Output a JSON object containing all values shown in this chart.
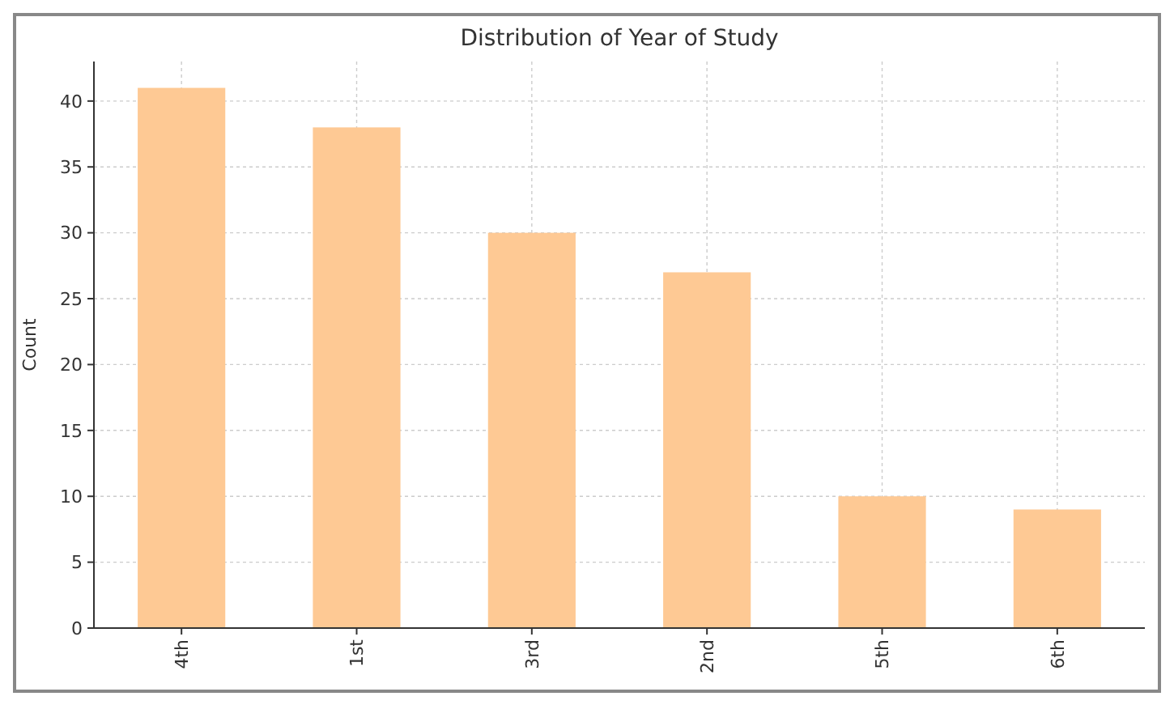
{
  "chart_data": {
    "type": "bar",
    "title": "Distribution of Year of Study",
    "ylabel": "Count",
    "categories": [
      "4th",
      "1st",
      "3rd",
      "2nd",
      "5th",
      "6th"
    ],
    "values": [
      41,
      38,
      30,
      27,
      10,
      9
    ],
    "color": "#fec994",
    "ylim": [
      0,
      43
    ],
    "yticks": [
      0,
      5,
      10,
      15,
      20,
      25,
      30,
      35,
      40
    ],
    "grid": true
  }
}
